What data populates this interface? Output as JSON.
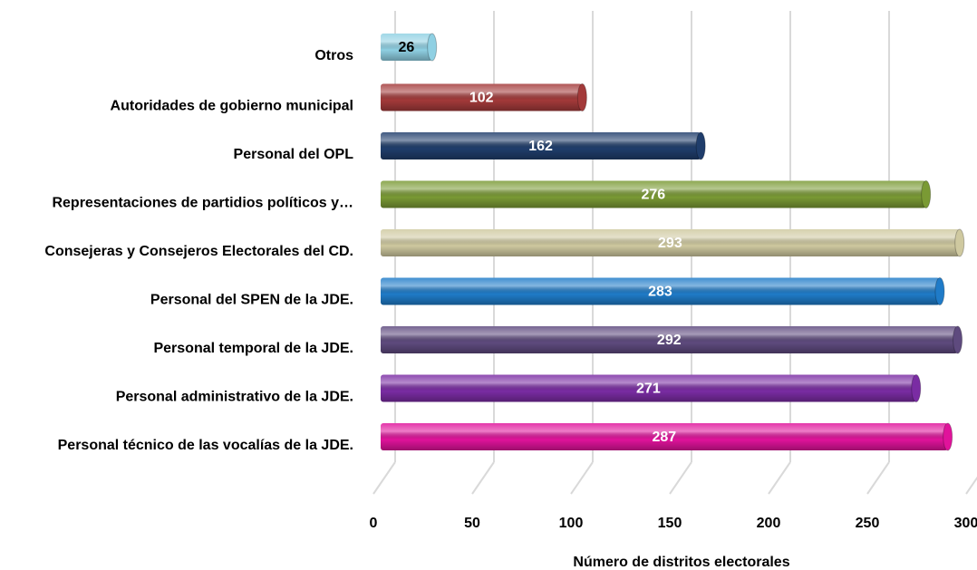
{
  "chart_data": {
    "type": "barh",
    "x_label": "Número de distritos electorales",
    "categories": [
      "Otros",
      "Autoridades de gobierno municipal",
      "Personal del OPL",
      "Representaciones de partidios políticos y…",
      "Consejeras y Consejeros Electorales del CD.",
      "Personal del SPEN de la JDE.",
      "Personal temporal de la JDE.",
      "Personal administrativo de la JDE.",
      "Personal técnico de las vocalías de la JDE."
    ],
    "values": [
      26,
      102,
      162,
      276,
      293,
      283,
      292,
      271,
      287
    ],
    "colors": [
      "#8fd0e3",
      "#a33a3a",
      "#1f3d6b",
      "#7a9a34",
      "#cfc9a0",
      "#1f7bc8",
      "#5e4a7e",
      "#7a2ca3",
      "#e0139b"
    ],
    "value_label_colors": [
      "#000000",
      "#ffffff",
      "#ffffff",
      "#ffffff",
      "#ffffff",
      "#ffffff",
      "#ffffff",
      "#ffffff",
      "#ffffff"
    ],
    "xlim": [
      0,
      300
    ],
    "xticks": [
      0,
      50,
      100,
      150,
      200,
      250,
      300
    ],
    "grid": true
  }
}
